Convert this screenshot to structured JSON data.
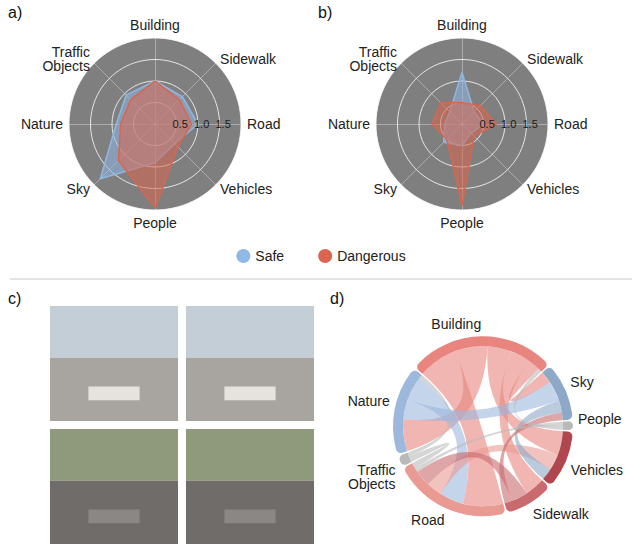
{
  "chart_data": [
    {
      "type": "radar",
      "panel_label": "a)",
      "categories": [
        "Building",
        "Sidewalk",
        "Road",
        "Vehicles",
        "People",
        "Sky",
        "Nature",
        "Traffic Objects"
      ],
      "rlim": [
        0,
        2
      ],
      "rticks": [
        0.5,
        {
          "value": 1,
          "label": "1.0"
        },
        1.5
      ],
      "legend": "bottom",
      "series": [
        {
          "name": "Safe",
          "color": "#8fb8e3",
          "values": [
            1.0,
            0.9,
            1.0,
            0.65,
            0.9,
            1.8,
            0.9,
            0.95
          ]
        },
        {
          "name": "Dangerous",
          "color": "#d9664f",
          "values": [
            1.0,
            0.8,
            0.85,
            0.75,
            1.95,
            1.2,
            0.8,
            0.8
          ]
        }
      ]
    },
    {
      "type": "radar",
      "panel_label": "b)",
      "categories": [
        "Building",
        "Sidewalk",
        "Road",
        "Vehicles",
        "People",
        "Sky",
        "Nature",
        "Traffic Objects"
      ],
      "rlim": [
        0,
        2
      ],
      "rticks": [
        0.5,
        {
          "value": 1,
          "label": "1.0"
        },
        1.5
      ],
      "series": [
        {
          "name": "Safe",
          "color": "#8fb8e3",
          "values": [
            1.2,
            0.4,
            0.5,
            0.3,
            0.5,
            0.6,
            0.4,
            0.4
          ]
        },
        {
          "name": "Dangerous",
          "color": "#d9664f",
          "values": [
            0.5,
            0.6,
            0.8,
            0.4,
            1.9,
            0.5,
            0.7,
            0.7
          ]
        }
      ]
    },
    {
      "type": "images",
      "panel_label": "c)",
      "rows": 2,
      "columns": 2
    },
    {
      "type": "chord",
      "panel_label": "d)",
      "nodes": [
        {
          "name": "Building",
          "color": "#e8857f"
        },
        {
          "name": "Sky",
          "color": "#8ea8c8"
        },
        {
          "name": "People",
          "color": "#b9b9b9"
        },
        {
          "name": "Vehicles",
          "color": "#b0464e"
        },
        {
          "name": "Sidewalk",
          "color": "#c96a6e"
        },
        {
          "name": "Road",
          "color": "#e99a92"
        },
        {
          "name": "Traffic Objects",
          "color": "#b9b9b9"
        },
        {
          "name": "Nature",
          "color": "#9db8dd"
        }
      ],
      "links": [
        {
          "source": "Building",
          "target": "Road",
          "value": 10
        },
        {
          "source": "Building",
          "target": "Nature",
          "value": 8
        },
        {
          "source": "Building",
          "target": "Vehicles",
          "value": 6
        },
        {
          "source": "Building",
          "target": "Sidewalk",
          "value": 5
        },
        {
          "source": "Building",
          "target": "Sky",
          "value": 3
        },
        {
          "source": "Nature",
          "target": "Sky",
          "value": 5
        },
        {
          "source": "Nature",
          "target": "Road",
          "value": 6
        },
        {
          "source": "Road",
          "target": "Vehicles",
          "value": 4
        },
        {
          "source": "Sidewalk",
          "target": "Road",
          "value": 4
        },
        {
          "source": "Sky",
          "target": "Vehicles",
          "value": 3
        },
        {
          "source": "Sidewalk",
          "target": "Sky",
          "value": 2
        },
        {
          "source": "People",
          "target": "Road",
          "value": 1
        },
        {
          "source": "Traffic Objects",
          "target": "Road",
          "value": 1.5
        },
        {
          "source": "People",
          "target": "Building",
          "value": 1
        },
        {
          "source": "Traffic Objects",
          "target": "Nature",
          "value": 1
        }
      ]
    }
  ]
}
